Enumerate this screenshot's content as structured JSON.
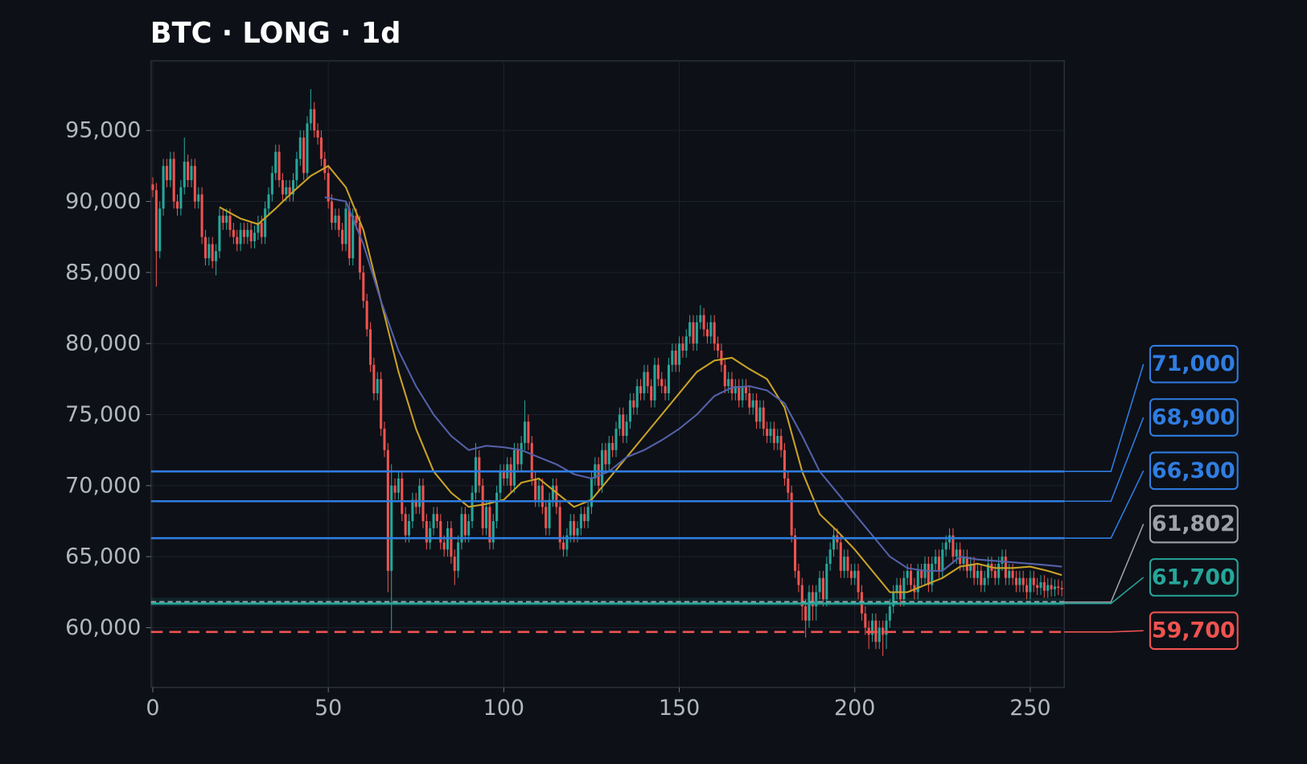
{
  "chart_data": {
    "type": "candlestick",
    "title": "BTC · LONG · 1d",
    "xlim": [
      -0.5,
      259.7
    ],
    "ylim": [
      55800,
      99900
    ],
    "xticks": [
      0,
      50,
      100,
      150,
      200,
      250
    ],
    "yticks": [
      {
        "value": 60000,
        "label": "60,000"
      },
      {
        "value": 65000,
        "label": "65,000"
      },
      {
        "value": 70000,
        "label": "70,000"
      },
      {
        "value": 75000,
        "label": "75,000"
      },
      {
        "value": 80000,
        "label": "80,000"
      },
      {
        "value": 85000,
        "label": "85,000"
      },
      {
        "value": 90000,
        "label": "90,000"
      },
      {
        "value": 95000,
        "label": "95,000"
      }
    ],
    "grid": true,
    "up_color": "#26a69a",
    "down_color": "#ef5350",
    "open": [
      91200,
      90800,
      86500,
      89500,
      92500,
      91500,
      93000,
      90000,
      89500,
      91000,
      92800,
      91500,
      92500,
      90000,
      90500,
      87500,
      86000,
      87000,
      85800,
      86500,
      89000,
      88500,
      89000,
      88000,
      87500,
      87000,
      88000,
      87500,
      88000,
      87200,
      87800,
      88500,
      87500,
      89500,
      90500,
      92000,
      93500,
      91500,
      90500,
      91000,
      90500,
      91500,
      93000,
      94500,
      92000,
      95500,
      96500,
      95000,
      94500,
      93000,
      92000,
      90000,
      88500,
      89000,
      88000,
      87000,
      89500,
      86000,
      89000,
      88500,
      85000,
      83000,
      81000,
      78500,
      76500,
      77500,
      74000,
      72500,
      64000,
      70000,
      69500,
      70500,
      68000,
      66500,
      67500,
      69000,
      68500,
      70000,
      67500,
      66000,
      67000,
      68000,
      67500,
      66000,
      65500,
      67000,
      65000,
      64000,
      66000,
      68000,
      66500,
      67500,
      69500,
      72000,
      70000,
      67000,
      68500,
      66000,
      67500,
      69500,
      71000,
      70500,
      71500,
      70000,
      72500,
      71500,
      73000,
      74500,
      73000,
      70500,
      69000,
      70000,
      68500,
      67000,
      69000,
      70000,
      68500,
      66000,
      65500,
      66500,
      67500,
      66500,
      67000,
      68000,
      67500,
      68500,
      70500,
      71500,
      70000,
      72500,
      71500,
      73000,
      72500,
      74000,
      75000,
      73500,
      74500,
      76000,
      75500,
      77000,
      76500,
      78000,
      77000,
      76000,
      78500,
      77500,
      77000,
      76500,
      78500,
      79500,
      78500,
      80000,
      79500,
      80500,
      81500,
      80000,
      81500,
      82000,
      81000,
      80500,
      81500,
      80000,
      79500,
      78500,
      77000,
      77500,
      76500,
      77000,
      76000,
      77000,
      76500,
      75500,
      76000,
      74500,
      75500,
      74000,
      73500,
      74000,
      73000,
      73500,
      72500,
      70500,
      69500,
      66500,
      64000,
      63000,
      61500,
      60500,
      62500,
      61500,
      62500,
      63500,
      62000,
      64500,
      65500,
      66500,
      66000,
      64000,
      65000,
      64000,
      63500,
      64000,
      62500,
      61000,
      60000,
      59500,
      60500,
      59000,
      60000,
      59500,
      60500,
      61500,
      62500,
      63000,
      62000,
      63500,
      64000,
      63000,
      62500,
      64000,
      63500,
      64500,
      63000,
      64500,
      65000,
      64000,
      65500,
      66000,
      66500,
      65000,
      65500,
      64500,
      65000,
      64000,
      64500,
      63500,
      64000,
      63000,
      63500,
      64500,
      64000,
      63500,
      64500,
      65000,
      63500,
      64000,
      63500,
      63000,
      63500,
      63000,
      62500,
      63500,
      63000,
      62800,
      63200,
      62600,
      63000,
      62700,
      62900,
      62800
    ],
    "high": [
      91700,
      91300,
      90000,
      93000,
      93000,
      93500,
      93500,
      90500,
      91500,
      94500,
      93300,
      93000,
      93000,
      91000,
      91000,
      88000,
      87500,
      87500,
      87000,
      89500,
      89500,
      89500,
      89500,
      88500,
      88000,
      88500,
      88500,
      88500,
      88500,
      88300,
      89000,
      89000,
      90000,
      91000,
      92500,
      94000,
      94000,
      92000,
      91500,
      91500,
      92000,
      93500,
      95000,
      95000,
      96000,
      97900,
      97000,
      95500,
      95000,
      93500,
      92500,
      90500,
      89500,
      89500,
      88500,
      90000,
      90000,
      89500,
      89500,
      89000,
      85500,
      83500,
      81500,
      79000,
      78000,
      78000,
      74500,
      73000,
      71500,
      70500,
      71000,
      71000,
      68500,
      68000,
      69500,
      69500,
      70500,
      70500,
      68000,
      67500,
      68500,
      68500,
      68000,
      66500,
      67500,
      67500,
      65500,
      66500,
      68500,
      68500,
      68000,
      70000,
      73000,
      72500,
      70500,
      69000,
      69000,
      68000,
      70000,
      71500,
      71500,
      72000,
      72000,
      73000,
      73000,
      73500,
      76000,
      75000,
      73500,
      71000,
      70500,
      70500,
      69000,
      69500,
      70500,
      70500,
      69000,
      66500,
      67000,
      68000,
      68000,
      67500,
      68500,
      68500,
      69000,
      71000,
      72000,
      72000,
      73000,
      73000,
      73500,
      73500,
      74500,
      75500,
      75500,
      75000,
      76500,
      76500,
      77500,
      77500,
      78500,
      78500,
      77500,
      79000,
      79000,
      78000,
      77500,
      79000,
      80000,
      80000,
      80500,
      80500,
      81000,
      82000,
      82000,
      82000,
      82700,
      82500,
      81500,
      82000,
      82000,
      80500,
      80000,
      79000,
      78000,
      78000,
      77500,
      77500,
      77500,
      77500,
      77000,
      76500,
      76500,
      76000,
      76000,
      74500,
      74500,
      74500,
      74000,
      74000,
      73000,
      71000,
      70000,
      67000,
      64500,
      63500,
      62000,
      63000,
      63000,
      63000,
      64000,
      64000,
      65000,
      66000,
      67000,
      67000,
      66500,
      65500,
      65500,
      64500,
      64500,
      64500,
      63000,
      61500,
      60500,
      61000,
      61000,
      60500,
      60500,
      61000,
      62000,
      63000,
      63500,
      63500,
      64000,
      64500,
      64500,
      63500,
      64500,
      64500,
      65000,
      65000,
      65000,
      65500,
      65500,
      66000,
      66500,
      67000,
      67000,
      66000,
      66000,
      65500,
      65500,
      65000,
      65000,
      64500,
      64500,
      64000,
      65000,
      65000,
      64500,
      65000,
      65500,
      65500,
      64500,
      64500,
      64000,
      64000,
      64000,
      63500,
      64000,
      64000,
      63500,
      63700,
      63700,
      63500,
      63500,
      63400,
      63400,
      63300
    ],
    "low": [
      90300,
      84000,
      86000,
      89000,
      91000,
      91000,
      89500,
      89000,
      89000,
      90500,
      91000,
      91000,
      89500,
      89500,
      87000,
      85500,
      85500,
      85300,
      84800,
      86000,
      88000,
      88000,
      87500,
      87000,
      86500,
      86500,
      87000,
      87000,
      86700,
      86700,
      87300,
      87000,
      87000,
      89000,
      90000,
      91500,
      91000,
      90000,
      90000,
      90000,
      90000,
      91000,
      92500,
      91500,
      91500,
      95000,
      94500,
      94000,
      92500,
      91500,
      89500,
      88000,
      88000,
      87500,
      86500,
      86500,
      85500,
      85500,
      88000,
      84500,
      82500,
      80500,
      78000,
      76000,
      76000,
      73500,
      72000,
      62500,
      59800,
      69000,
      69000,
      67500,
      66000,
      66000,
      67000,
      68000,
      68000,
      67000,
      65500,
      65500,
      66500,
      67000,
      65500,
      65000,
      65000,
      64500,
      63000,
      63500,
      65500,
      66000,
      66000,
      67000,
      69000,
      69500,
      66500,
      66500,
      65500,
      65500,
      67000,
      69000,
      70000,
      70000,
      69500,
      69500,
      71000,
      71000,
      72500,
      72500,
      70000,
      68500,
      68500,
      68000,
      66500,
      66500,
      68500,
      68000,
      65500,
      65000,
      65000,
      66000,
      66000,
      66000,
      66500,
      67000,
      67000,
      68000,
      70000,
      69500,
      69500,
      71000,
      71000,
      72000,
      72000,
      73500,
      73000,
      73000,
      74000,
      75000,
      75000,
      76000,
      76000,
      76500,
      75500,
      75500,
      77000,
      76500,
      76000,
      76000,
      78000,
      78000,
      78000,
      79000,
      79000,
      80000,
      79500,
      79500,
      81000,
      80500,
      80000,
      80000,
      79500,
      79000,
      78000,
      76500,
      76500,
      76000,
      76000,
      75500,
      75500,
      76000,
      75000,
      75000,
      74000,
      74000,
      73500,
      73000,
      73000,
      72500,
      72500,
      72000,
      70000,
      69000,
      66000,
      63500,
      62500,
      60500,
      59300,
      60000,
      60500,
      60500,
      62000,
      61500,
      61500,
      64000,
      65000,
      65500,
      63500,
      63500,
      63500,
      63000,
      63000,
      62000,
      60500,
      59500,
      58500,
      59000,
      58500,
      58500,
      58000,
      58500,
      60000,
      61000,
      62000,
      61500,
      61500,
      63000,
      62500,
      62000,
      62000,
      63000,
      63000,
      62500,
      62500,
      64000,
      63500,
      63500,
      65000,
      65500,
      64500,
      64500,
      64000,
      64000,
      63500,
      63500,
      63000,
      63000,
      62500,
      62500,
      63000,
      63500,
      63000,
      63000,
      64000,
      63000,
      63000,
      63000,
      62500,
      62500,
      62500,
      62000,
      62000,
      62500,
      62300,
      62300,
      62100,
      62100,
      62200,
      62200,
      62300,
      62200
    ],
    "close": [
      90800,
      86500,
      89500,
      92500,
      91500,
      93000,
      90000,
      89500,
      91000,
      92800,
      91500,
      92500,
      90000,
      90500,
      87500,
      86000,
      87000,
      85800,
      86500,
      89000,
      88500,
      89000,
      88000,
      87500,
      87000,
      88000,
      87500,
      88000,
      87200,
      87800,
      88500,
      87500,
      89500,
      90500,
      92000,
      93500,
      91500,
      90500,
      91000,
      90500,
      91500,
      93000,
      94500,
      92000,
      95500,
      96500,
      95000,
      94500,
      93000,
      92000,
      90000,
      88500,
      89000,
      88000,
      87000,
      89500,
      86000,
      89000,
      88500,
      85000,
      83000,
      81000,
      78500,
      76500,
      77500,
      74000,
      72500,
      64000,
      70000,
      69500,
      70500,
      68000,
      66500,
      67500,
      69000,
      68500,
      70000,
      67500,
      66000,
      67000,
      68000,
      67500,
      66000,
      65500,
      67000,
      65000,
      64000,
      66000,
      68000,
      66500,
      67500,
      69500,
      72000,
      70000,
      67000,
      68500,
      66000,
      67500,
      69500,
      71000,
      70500,
      71500,
      70000,
      72500,
      71500,
      73000,
      74500,
      73000,
      70500,
      69000,
      70000,
      68500,
      67000,
      69000,
      70000,
      68500,
      66000,
      65500,
      66500,
      67500,
      66500,
      67000,
      68000,
      67500,
      68500,
      70500,
      71500,
      70000,
      72500,
      71500,
      73000,
      72500,
      74000,
      75000,
      73500,
      74500,
      76000,
      75500,
      77000,
      76500,
      78000,
      77000,
      76000,
      78500,
      77500,
      77000,
      76500,
      78500,
      79500,
      78500,
      80000,
      79500,
      80500,
      81500,
      80000,
      81500,
      82000,
      81000,
      80500,
      81500,
      80000,
      79500,
      78500,
      77000,
      77500,
      76500,
      77000,
      76000,
      77000,
      76500,
      75500,
      76000,
      74500,
      75500,
      74000,
      73500,
      74000,
      73000,
      73500,
      72500,
      70500,
      69500,
      66500,
      64000,
      63000,
      61500,
      60500,
      62500,
      61500,
      62500,
      63500,
      62000,
      64500,
      65500,
      66500,
      66000,
      64000,
      65000,
      64000,
      63500,
      64000,
      62500,
      61000,
      60000,
      59500,
      60500,
      59000,
      60000,
      59500,
      60500,
      61500,
      62500,
      63000,
      62000,
      63500,
      64000,
      63000,
      62500,
      64000,
      63500,
      64500,
      63000,
      64500,
      65000,
      64000,
      65500,
      66000,
      66500,
      65000,
      65500,
      64500,
      65000,
      64000,
      64500,
      63500,
      64000,
      63000,
      63500,
      64500,
      64000,
      63500,
      64500,
      65000,
      63500,
      64000,
      63500,
      63000,
      63500,
      63000,
      62500,
      63500,
      63000,
      62800,
      63200,
      62600,
      63000,
      62700,
      62900,
      62800,
      62700
    ],
    "lines": [
      {
        "color": "#c9a227",
        "x": [
          19,
          25,
          30,
          35,
          40,
          45,
          50,
          55,
          60,
          65,
          70,
          75,
          80,
          85,
          90,
          95,
          100,
          105,
          110,
          115,
          120,
          125,
          130,
          135,
          140,
          145,
          150,
          155,
          160,
          165,
          170,
          175,
          180,
          185,
          190,
          195,
          200,
          205,
          210,
          215,
          220,
          225,
          230,
          235,
          240,
          245,
          250,
          255,
          259
        ],
        "values": [
          89600,
          88800,
          88400,
          89500,
          90700,
          91800,
          92500,
          91000,
          88000,
          83000,
          78000,
          74000,
          71000,
          69500,
          68500,
          68700,
          69000,
          70200,
          70500,
          69500,
          68500,
          69000,
          70500,
          72000,
          73500,
          75000,
          76500,
          78000,
          78800,
          79000,
          78200,
          77500,
          75500,
          71000,
          68000,
          66800,
          65500,
          64000,
          62500,
          62500,
          63000,
          63500,
          64300,
          64500,
          64200,
          64200,
          64300,
          64000,
          63700
        ]
      },
      {
        "color": "#5461a8",
        "x": [
          49,
          55,
          60,
          65,
          70,
          75,
          80,
          85,
          90,
          95,
          100,
          105,
          110,
          115,
          120,
          125,
          130,
          135,
          140,
          145,
          150,
          155,
          160,
          165,
          170,
          175,
          180,
          185,
          190,
          195,
          200,
          205,
          210,
          215,
          220,
          225,
          230,
          235,
          240,
          245,
          250,
          255,
          259
        ],
        "values": [
          90300,
          90000,
          87000,
          83000,
          79500,
          77000,
          75000,
          73500,
          72500,
          72800,
          72700,
          72500,
          72000,
          71500,
          70800,
          70500,
          71000,
          72000,
          72500,
          73200,
          74000,
          75000,
          76300,
          76900,
          77000,
          76700,
          75800,
          73500,
          71000,
          69500,
          68000,
          66500,
          65000,
          64200,
          64000,
          64000,
          65000,
          64800,
          64700,
          64600,
          64500,
          64400,
          64300
        ]
      }
    ],
    "levels": [
      {
        "value": 71000,
        "label": "71,000",
        "color": "#2f7de1",
        "dashed": false
      },
      {
        "value": 68900,
        "label": "68,900",
        "color": "#2f7de1",
        "dashed": false
      },
      {
        "value": 66300,
        "label": "66,300",
        "color": "#2f7de1",
        "dashed": false
      },
      {
        "value": 61802,
        "label": "61,802",
        "color": "#9ea2a8",
        "dashed": true
      },
      {
        "value": 61700,
        "label": "61,700",
        "color": "#26a69a",
        "dashed": false,
        "zone": [
          61500,
          62100
        ]
      },
      {
        "value": 59700,
        "label": "59,700",
        "color": "#ef5350",
        "dashed": true
      }
    ]
  }
}
